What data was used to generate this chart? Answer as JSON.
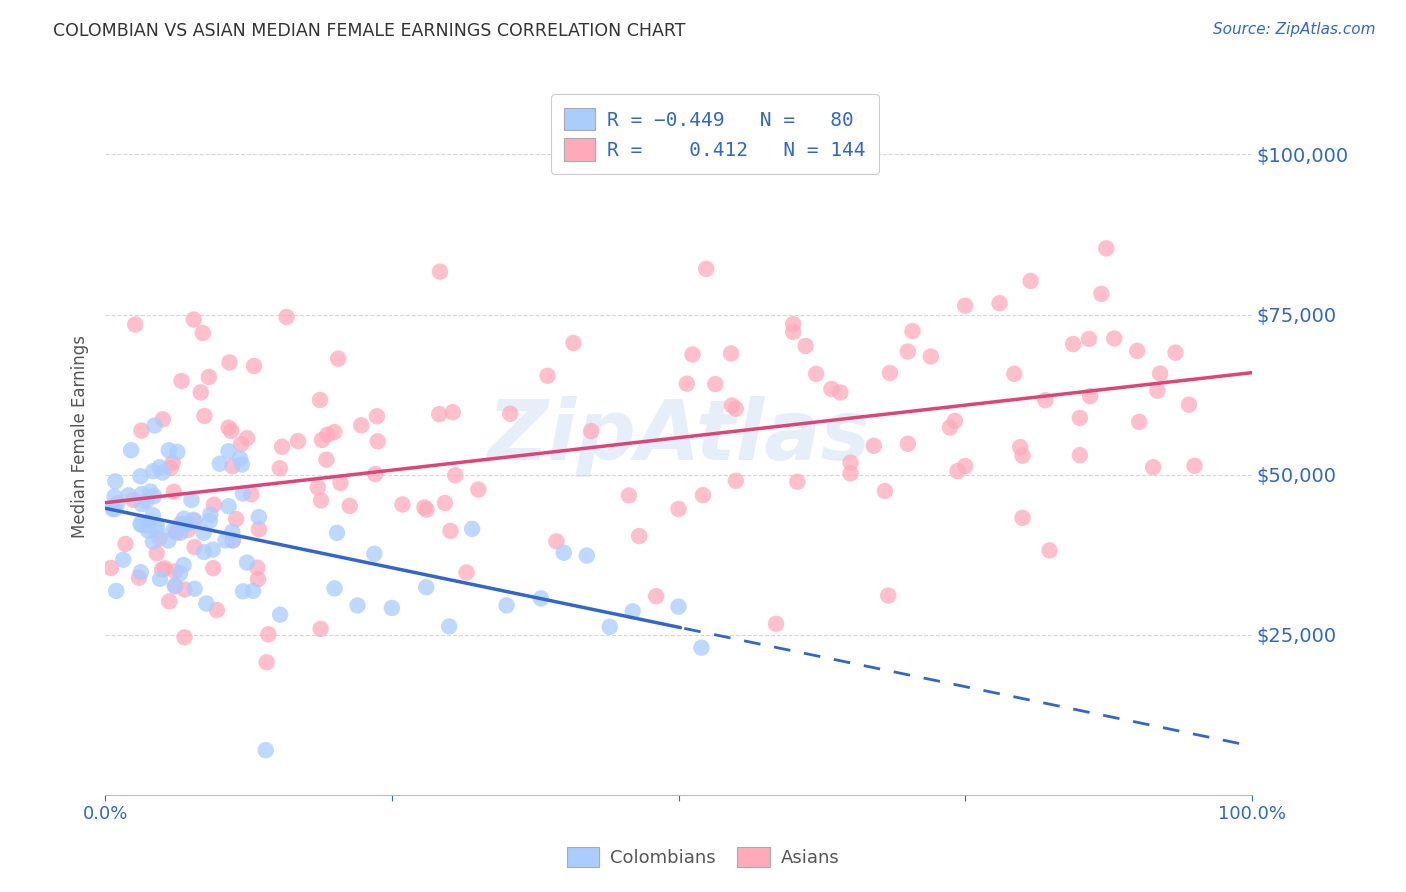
{
  "title": "COLOMBIAN VS ASIAN MEDIAN FEMALE EARNINGS CORRELATION CHART",
  "source": "Source: ZipAtlas.com",
  "ylabel": "Median Female Earnings",
  "ytick_labels": [
    "$25,000",
    "$50,000",
    "$75,000",
    "$100,000"
  ],
  "ytick_values": [
    25000,
    50000,
    75000,
    100000
  ],
  "ylim": [
    0,
    112000
  ],
  "xlim": [
    0.0,
    1.0
  ],
  "watermark": "ZipAtlas",
  "colombian_color": "#aaccff",
  "asian_color": "#ffaabb",
  "colombian_line_color": "#3366cc",
  "asian_line_color": "#dd4477",
  "background_color": "#ffffff",
  "grid_color": "#cccccc",
  "title_color": "#333333",
  "label_color": "#3366cc",
  "source_color": "#3366cc",
  "col_intercept": 46000,
  "col_slope": -42000,
  "asi_intercept": 44000,
  "asi_slope": 26000
}
